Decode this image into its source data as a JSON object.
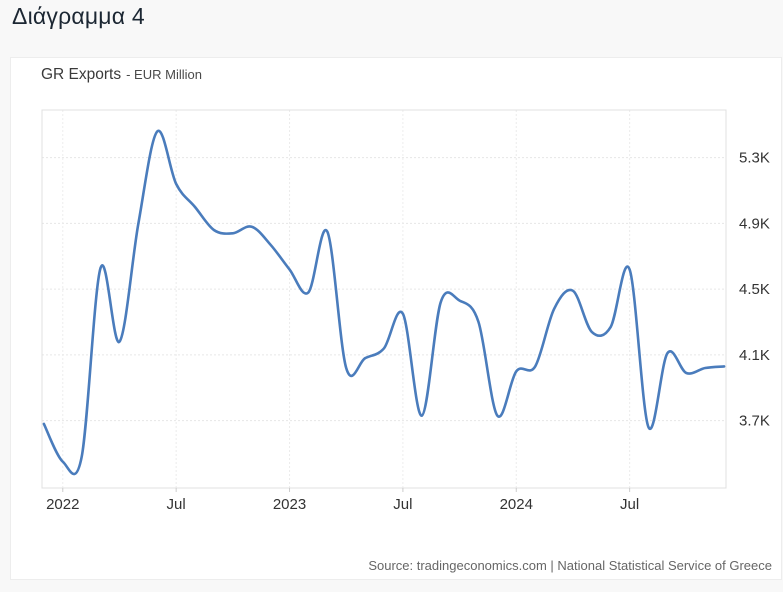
{
  "page": {
    "title": "Διάγραμμα 4"
  },
  "chart": {
    "title": "GR Exports",
    "subtitle": "- EUR Million",
    "source": "Source: tradingeconomics.com | National Statistical Service of Greece",
    "line_color": "#4a7cbc",
    "axis_text_color": "#333333"
  },
  "chart_data": {
    "type": "line",
    "title": "GR Exports - EUR Million",
    "unit": "EUR Million",
    "legend": "none",
    "grid": "dashed",
    "x": [
      "2021-12",
      "2022-01",
      "2022-02",
      "2022-03",
      "2022-04",
      "2022-05",
      "2022-06",
      "2022-07",
      "2022-08",
      "2022-09",
      "2022-10",
      "2022-11",
      "2022-12",
      "2023-01",
      "2023-02",
      "2023-03",
      "2023-04",
      "2023-05",
      "2023-06",
      "2023-07",
      "2023-08",
      "2023-09",
      "2023-10",
      "2023-11",
      "2023-12",
      "2024-01",
      "2024-02",
      "2024-03",
      "2024-04",
      "2024-05",
      "2024-06",
      "2024-07",
      "2024-08",
      "2024-09",
      "2024-10",
      "2024-11",
      "2024-12"
    ],
    "values": [
      3680,
      3450,
      3480,
      4630,
      4180,
      4900,
      5460,
      5140,
      5000,
      4860,
      4840,
      4880,
      4770,
      4620,
      4480,
      4850,
      4020,
      4080,
      4140,
      4350,
      3730,
      4420,
      4430,
      4300,
      3730,
      4000,
      4030,
      4380,
      4490,
      4240,
      4270,
      4620,
      3660,
      4110,
      3990,
      4020,
      4030
    ],
    "ylim_k": [
      3.29,
      5.59
    ],
    "y_ticks": [
      {
        "label": "3.7K",
        "value": 3.7
      },
      {
        "label": "4.1K",
        "value": 4.1
      },
      {
        "label": "4.5K",
        "value": 4.5
      },
      {
        "label": "4.9K",
        "value": 4.9
      },
      {
        "label": "5.3K",
        "value": 5.3
      }
    ],
    "x_ticks": [
      {
        "label": "2022",
        "index": 1
      },
      {
        "label": "Jul",
        "index": 7
      },
      {
        "label": "2023",
        "index": 13
      },
      {
        "label": "Jul",
        "index": 19
      },
      {
        "label": "2024",
        "index": 25
      },
      {
        "label": "Jul",
        "index": 31
      }
    ]
  }
}
